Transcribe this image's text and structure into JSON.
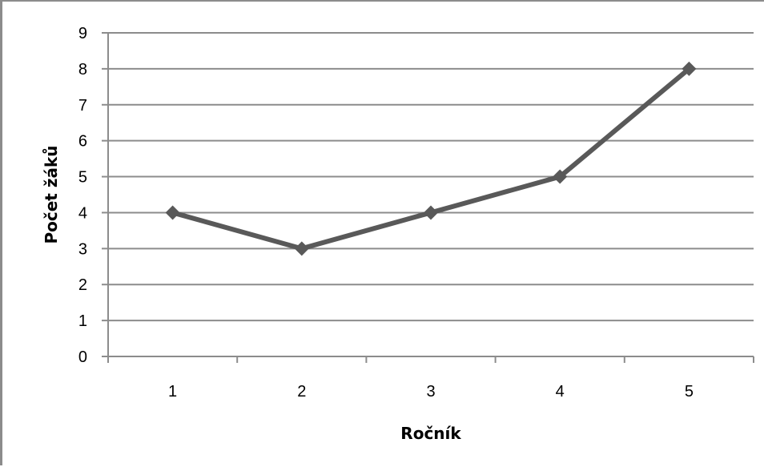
{
  "chart_data": {
    "type": "line",
    "title": "",
    "xlabel": "Ročník",
    "ylabel": "Počet žáků",
    "categories": [
      "1",
      "2",
      "3",
      "4",
      "5"
    ],
    "series": [
      {
        "values": [
          4,
          3,
          4,
          5,
          8
        ]
      }
    ],
    "ylim": [
      0,
      9
    ],
    "yticks": [
      "0",
      "1",
      "2",
      "3",
      "4",
      "5",
      "6",
      "7",
      "8",
      "9"
    ],
    "grid": true,
    "legend": "none",
    "marker": "diamond",
    "colors": {
      "line": "#595959",
      "marker": "#595959",
      "grid": "#8c8c8c",
      "axis": "#8c8c8c"
    }
  }
}
